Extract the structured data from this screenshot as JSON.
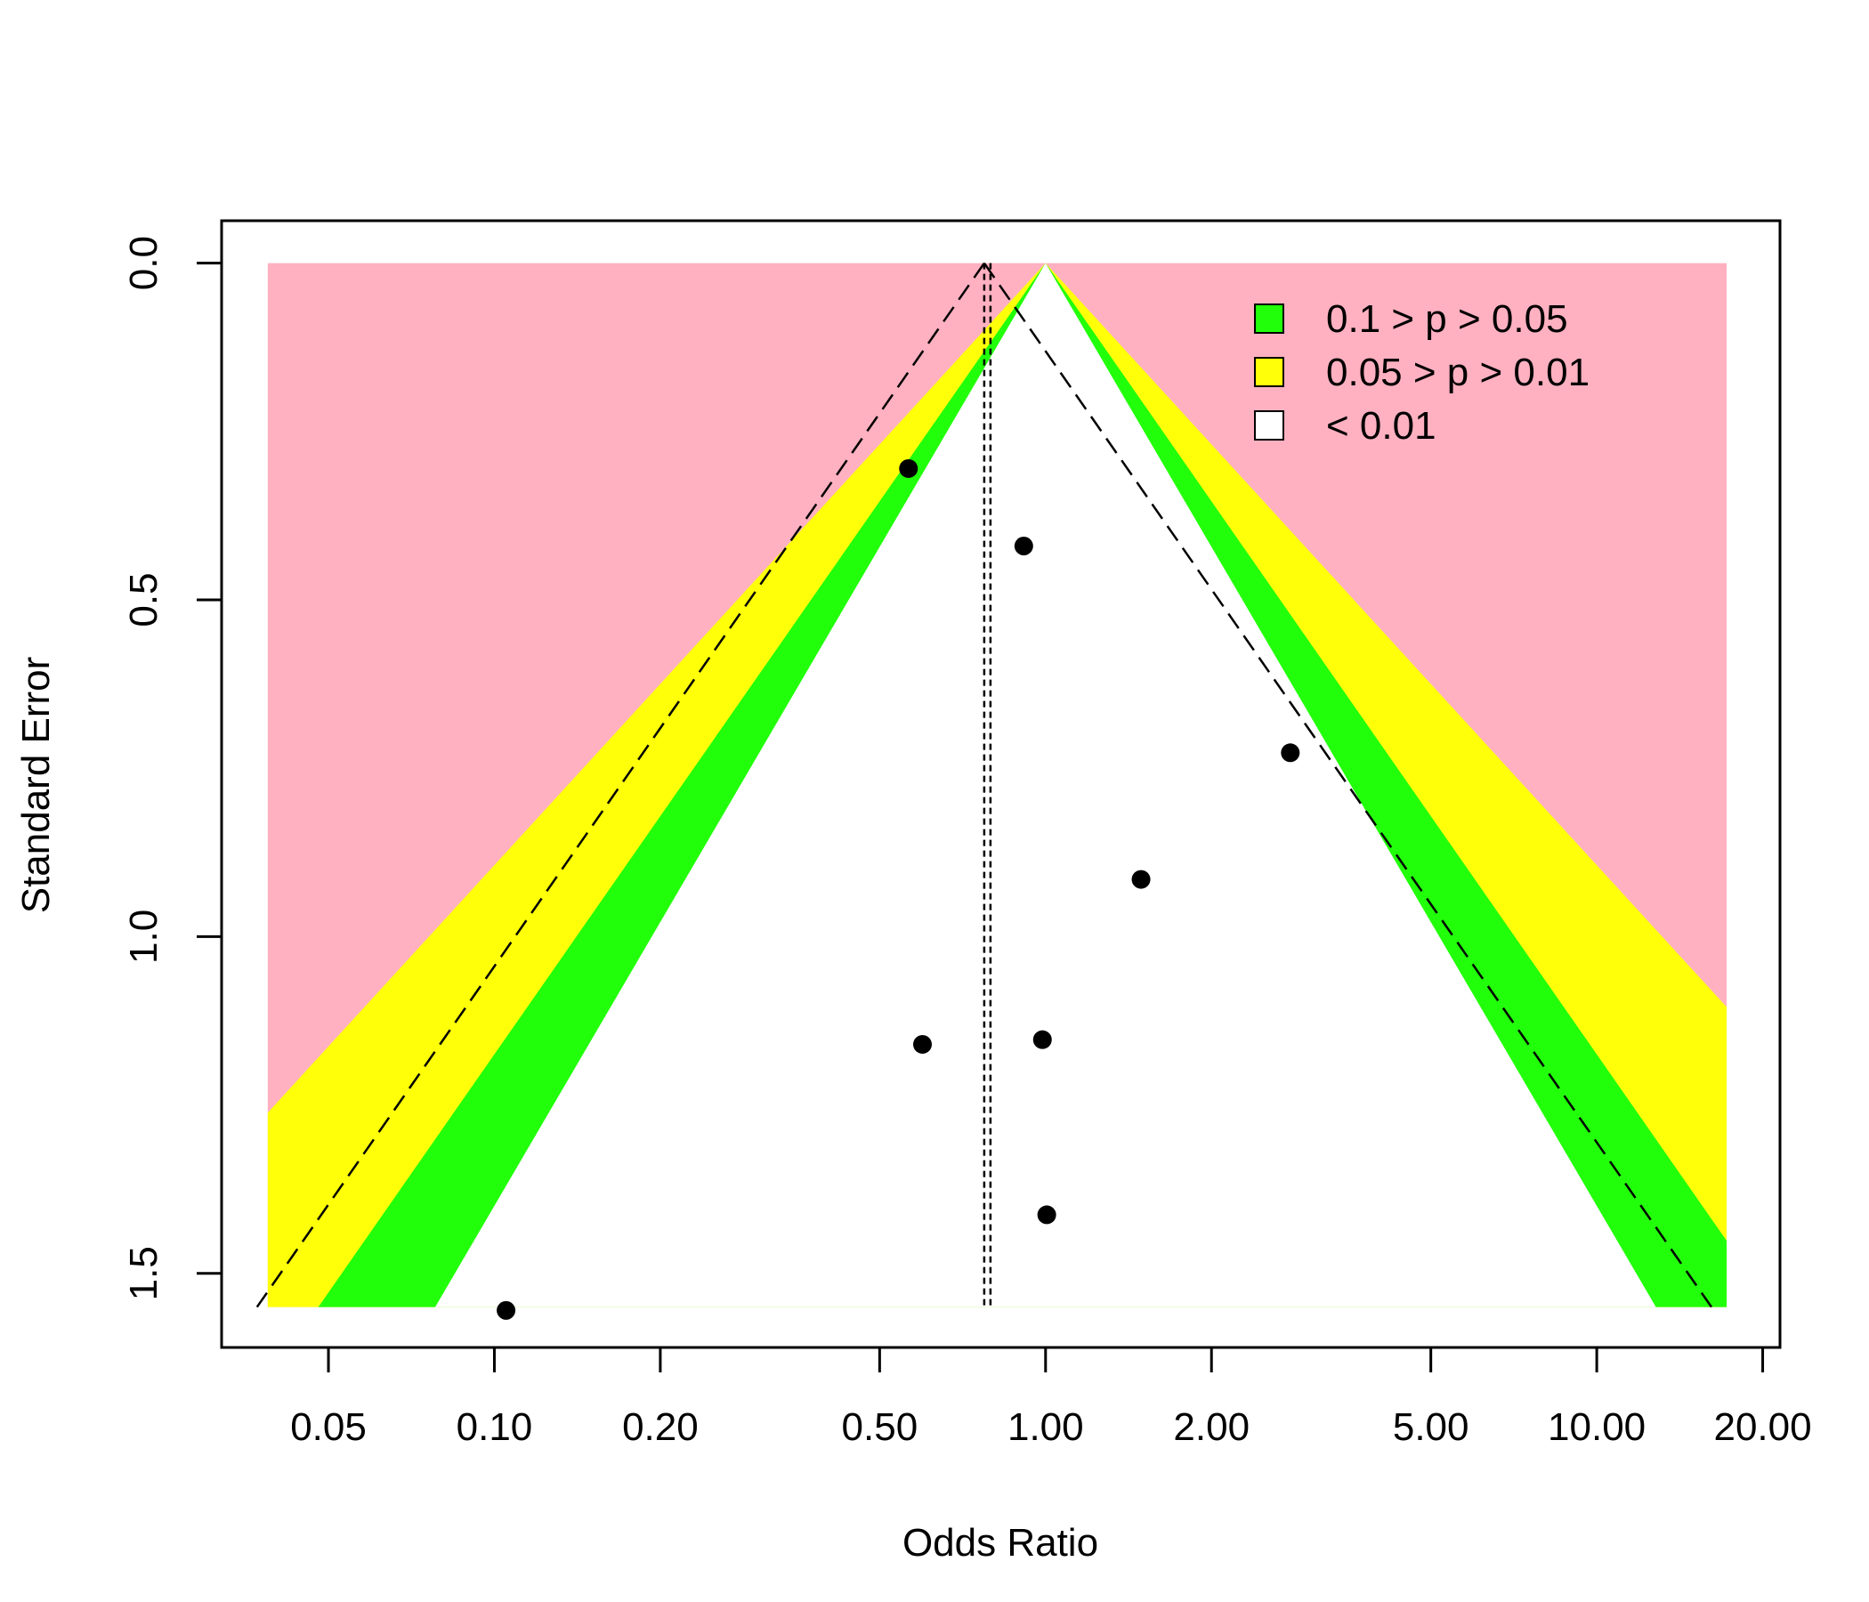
{
  "chart_data": {
    "type": "scatter",
    "title": "",
    "xlabel": "Odds Ratio",
    "ylabel": "Standard Error",
    "x_scale": "log",
    "xlim": [
      0.032,
      21.5
    ],
    "ylim": [
      1.61,
      -0.063
    ],
    "y_reversed": true,
    "x_ticks": [
      0.05,
      0.1,
      0.2,
      0.5,
      1,
      2,
      5,
      10,
      20
    ],
    "x_tick_labels": [
      "0.05",
      "0.10",
      "0.20",
      "0.50",
      "1.00",
      "2.00",
      "5.00",
      "10.00",
      "20.00"
    ],
    "y_ticks": [
      0,
      0.5,
      1,
      1.5
    ],
    "y_tick_labels": [
      "0.0",
      "0.5",
      "1.0",
      "1.5"
    ],
    "contour_center": 1.0,
    "contour_region_x": [
      0.0388,
      17.2
    ],
    "contour_region_ymax": 1.55,
    "summary_estimate": 0.774,
    "summary_se_max": 1.55,
    "points": [
      {
        "x": 0.564,
        "y": 0.305
      },
      {
        "x": 0.913,
        "y": 0.42
      },
      {
        "x": 2.78,
        "y": 0.727
      },
      {
        "x": 1.49,
        "y": 0.915
      },
      {
        "x": 0.598,
        "y": 1.16
      },
      {
        "x": 0.987,
        "y": 1.153
      },
      {
        "x": 1.005,
        "y": 1.413
      },
      {
        "x": 0.105,
        "y": 1.555
      }
    ],
    "legend": {
      "position": "top-right",
      "entries": [
        {
          "label": "0.1 > p > 0.05",
          "color": "#22ff0a"
        },
        {
          "label": "0.05 > p > 0.01",
          "color": "#ffff0a"
        },
        {
          "label": "< 0.01",
          "color": "#ffffff"
        }
      ]
    },
    "colors": {
      "outer_region": "#ffb1c1",
      "band_p10": "#22ff0a",
      "band_p05": "#ffff0a",
      "inner": "#ffffff"
    },
    "grid": false
  }
}
